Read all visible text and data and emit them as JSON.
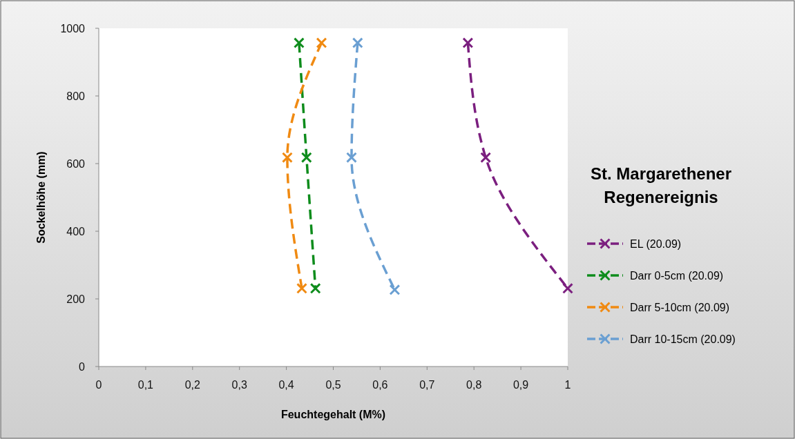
{
  "chart_data": {
    "type": "line",
    "title": "St. Margarethener Regenereignis",
    "xlabel": "Feuchtegehalt (M%)",
    "ylabel": "Sockelhöhe (mm)",
    "xlim": [
      0,
      1
    ],
    "xticks": [
      0,
      {
        "value": 0.1,
        "label": "0,1"
      },
      {
        "value": 0.2,
        "label": "0,2"
      },
      {
        "value": 0.3,
        "label": "0,3"
      },
      {
        "value": 0.4,
        "label": "0,4"
      },
      {
        "value": 0.5,
        "label": "0,5"
      },
      {
        "value": 0.6,
        "label": "0,6"
      },
      {
        "value": 0.7,
        "label": "0,7"
      },
      {
        "value": 0.8,
        "label": "0,8"
      },
      {
        "value": 0.9,
        "label": "0,9"
      },
      1
    ],
    "ylim": [
      0,
      1000
    ],
    "yticks": [
      0,
      200,
      400,
      600,
      800,
      1000
    ],
    "grid": false,
    "legend": "right",
    "marker": "cross",
    "line_style": "dashed",
    "series": [
      {
        "name": "EL (20.09)",
        "color": "#7b1f7f",
        "x": [
          0.787,
          0.825,
          1.0
        ],
        "values": [
          957,
          618,
          231
        ]
      },
      {
        "name": "Darr 0-5cm (20.09)",
        "color": "#0e8c1c",
        "x": [
          0.427,
          0.443,
          0.462
        ],
        "values": [
          957,
          618,
          231
        ]
      },
      {
        "name": "Darr 5-10cm (20.09)",
        "color": "#f08a12",
        "x": [
          0.475,
          0.402,
          0.433
        ],
        "values": [
          957,
          618,
          231
        ]
      },
      {
        "name": "Darr 10-15cm (20.09)",
        "color": "#6a9fd2",
        "x": [
          0.552,
          0.539,
          0.631
        ],
        "values": [
          957,
          618,
          227
        ]
      }
    ]
  }
}
